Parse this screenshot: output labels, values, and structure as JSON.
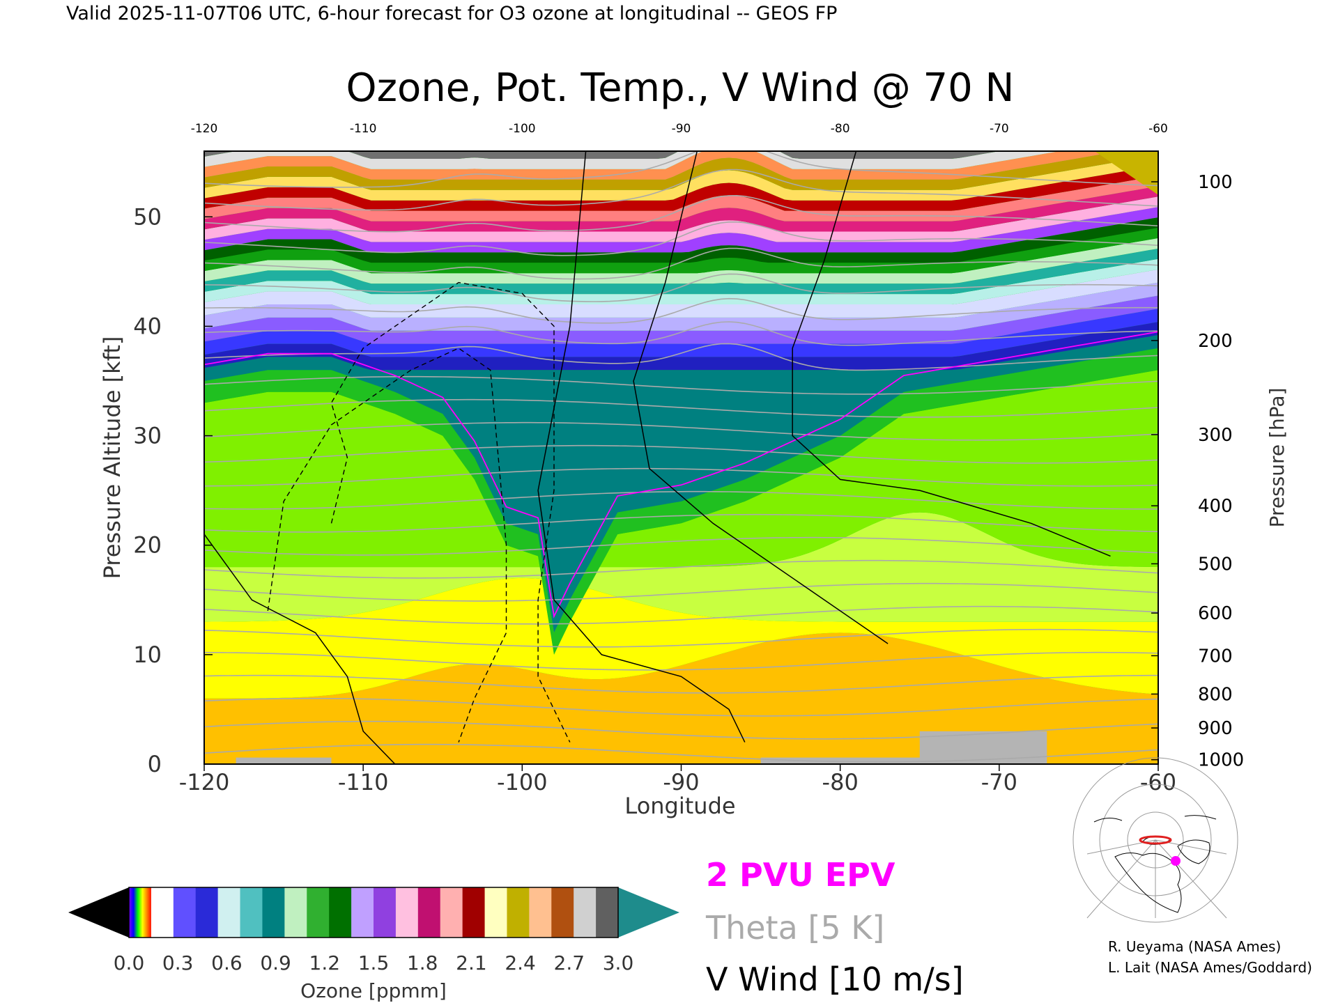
{
  "header": {
    "valid_text": "Valid 2025-11-07T06 UTC, 6-hour forecast for O3 ozone at longitudinal -- GEOS FP"
  },
  "chart_data": {
    "type": "heatmap",
    "title": "Ozone, Pot. Temp., V Wind @ 70 N",
    "xlabel": "Longitude",
    "ylabel": "Pressure Altitude [kft]",
    "y2label": "Pressure [hPa]",
    "xlim": [
      -120,
      -60
    ],
    "ylim": [
      0,
      56
    ],
    "x_ticks": [
      "-120",
      "-110",
      "-100",
      "-90",
      "-80",
      "-70",
      "-60"
    ],
    "y_ticks": [
      "0",
      "10",
      "20",
      "30",
      "40",
      "50"
    ],
    "pressure_ticks": [
      {
        "label": "1000",
        "kft": 0.4
      },
      {
        "label": "900",
        "kft": 3.3
      },
      {
        "label": "800",
        "kft": 6.4
      },
      {
        "label": "700",
        "kft": 9.9
      },
      {
        "label": "600",
        "kft": 13.8
      },
      {
        "label": "500",
        "kft": 18.3
      },
      {
        "label": "400",
        "kft": 23.6
      },
      {
        "label": "300",
        "kft": 30.1
      },
      {
        "label": "200",
        "kft": 38.7
      },
      {
        "label": "100",
        "kft": 53.2
      }
    ],
    "colorbar": {
      "label": "Ozone [ppmm]",
      "ticks": [
        "0.0",
        "0.3",
        "0.6",
        "0.9",
        "1.2",
        "1.5",
        "1.8",
        "2.1",
        "2.4",
        "2.7",
        "3.0"
      ],
      "min": 0.0,
      "max": 3.0,
      "under_color": "#000000",
      "over_color": "#1e8c8c"
    },
    "tropopause_ozone_profile": {
      "lon": [
        -120,
        -116,
        -112,
        -108,
        -105,
        -103,
        -101,
        -99,
        -98,
        -97,
        -94,
        -90,
        -86,
        -83,
        -80,
        -76,
        -72,
        -68,
        -64,
        -60
      ],
      "kft": [
        36,
        37,
        37,
        35,
        33,
        29,
        23,
        22,
        13,
        16,
        24,
        25,
        27,
        29,
        31,
        35,
        36,
        37,
        38,
        39
      ]
    },
    "legend": [
      {
        "name": "2 PVU EPV",
        "color": "#ff00ff"
      },
      {
        "name": "Theta [5 K]",
        "color": "#aaaaaa"
      },
      {
        "name": "V Wind [10 m/s]",
        "color": "#000000"
      }
    ],
    "credits": [
      "R. Ueyama (NASA Ames)",
      "L. Lait (NASA Ames/Goddard)"
    ]
  }
}
